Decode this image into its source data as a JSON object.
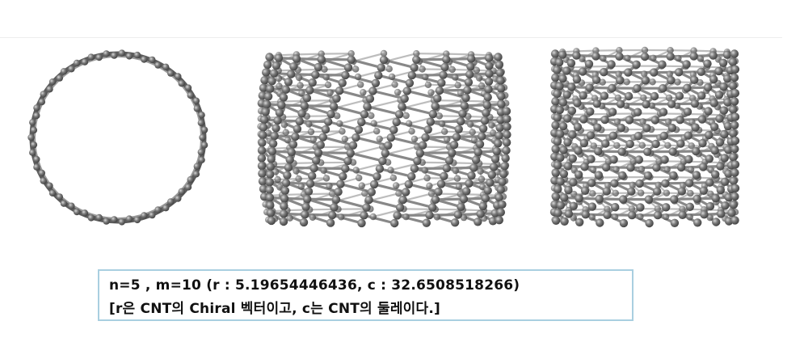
{
  "figure": {
    "views": [
      {
        "id": "end",
        "name": "end-view"
      },
      {
        "id": "side",
        "name": "side-view"
      },
      {
        "id": "side2",
        "name": "rotated-side-view"
      }
    ],
    "colors": {
      "atom": "#6e6e6e",
      "bond": "#888888",
      "highlight": "#cfcfcf"
    }
  },
  "caption": {
    "line1": "n=5 , m=10 (r  : 5.19654446436, c : 32.6508518266)",
    "line2": "[r은 CNT의 Chiral 벡터이고, c는 CNT의 둘레이다.]"
  }
}
